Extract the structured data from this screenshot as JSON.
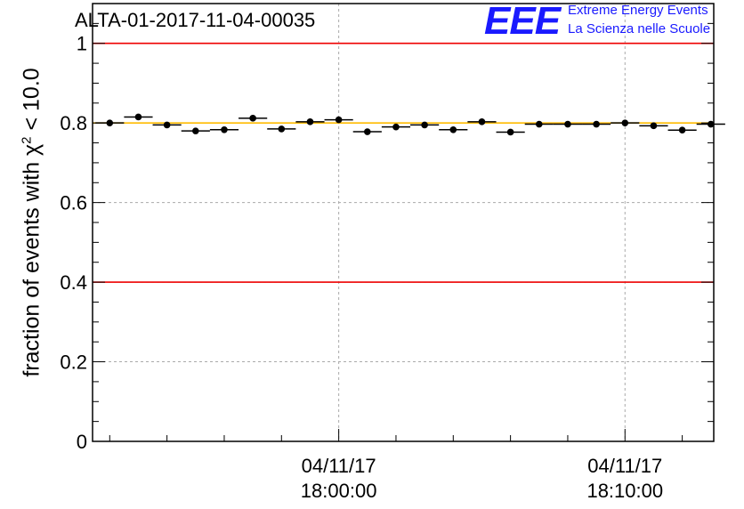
{
  "title": "ALTA-01-2017-11-04-00035",
  "logo": {
    "mark": "EEE",
    "line1": "Extreme Energy Events",
    "line2": "La Scienza nelle Scuole",
    "color": "#1a1aff"
  },
  "ylabel": {
    "prefix": "fraction of events with ",
    "symbol": "χ",
    "exponent": "2",
    "suffix": " < 10.0"
  },
  "chart_data": {
    "type": "scatter",
    "title": "ALTA-01-2017-11-04-00035",
    "ylabel": "fraction of events with χ² < 10.0",
    "xlabel": "",
    "ylim": [
      0,
      1.1
    ],
    "yticks": [
      0,
      0.2,
      0.4,
      0.6,
      0.8,
      1
    ],
    "ytick_labels": [
      "0",
      "0.2",
      "0.4",
      "0.6",
      "0.8",
      "1"
    ],
    "x_unit": "minutes after 04/11/17 18:00:00",
    "xlim": [
      -8.6,
      13.1
    ],
    "xticks": [
      0,
      10
    ],
    "xtick_labels": [
      [
        "04/11/17",
        "18:00:00"
      ],
      [
        "04/11/17",
        "18:10:00"
      ]
    ],
    "grid": true,
    "reference_lines": [
      {
        "y": 1.0,
        "color": "#ee0000"
      },
      {
        "y": 0.4,
        "color": "#ee0000"
      },
      {
        "y": 0.8,
        "color": "#ffbb00"
      }
    ],
    "series": [
      {
        "marker_color": "#000000",
        "x": [
          -8.0,
          -7.0,
          -6.0,
          -5.0,
          -4.0,
          -3.0,
          -2.0,
          -1.0,
          0.0,
          1.0,
          2.0,
          3.0,
          4.0,
          5.0,
          6.0,
          7.0,
          8.0,
          9.0,
          10.0,
          11.0,
          12.0,
          13.0
        ],
        "y": [
          0.8,
          0.815,
          0.795,
          0.78,
          0.783,
          0.812,
          0.785,
          0.803,
          0.808,
          0.778,
          0.79,
          0.795,
          0.783,
          0.803,
          0.777,
          0.797,
          0.797,
          0.797,
          0.8,
          0.793,
          0.782,
          0.797
        ],
        "xerr": 0.5
      }
    ]
  }
}
